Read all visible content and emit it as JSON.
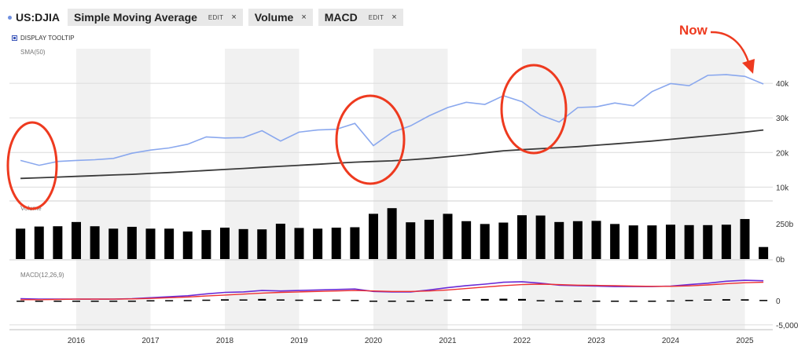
{
  "header": {
    "symbol": "US:DJIA",
    "tabs": [
      {
        "name": "Simple Moving Average",
        "edit": "EDIT",
        "close": "×"
      },
      {
        "name": "Volume",
        "close": "×"
      },
      {
        "name": "MACD",
        "edit": "EDIT",
        "close": "×"
      }
    ]
  },
  "tooltip_toggle": {
    "label": "DISPLAY TOOLTIP"
  },
  "annotation": {
    "now_label": "Now",
    "color": "#ee3a1f"
  },
  "colors": {
    "price": "#8aa8ee",
    "sma": "#3a3a3a",
    "volume": "#000000",
    "macd": "#6a2bd6",
    "signal": "#ee3030",
    "histogram": "#000000",
    "band": "#f1f1f1",
    "grid": "#dcdcdc"
  },
  "chart_data": [
    {
      "type": "line",
      "panel": "price",
      "label": "SMA(50)",
      "x": [
        2015.25,
        2015.5,
        2015.75,
        2016.0,
        2016.25,
        2016.5,
        2016.75,
        2017.0,
        2017.25,
        2017.5,
        2017.75,
        2018.0,
        2018.25,
        2018.5,
        2018.75,
        2019.0,
        2019.25,
        2019.5,
        2019.75,
        2020.0,
        2020.25,
        2020.5,
        2020.75,
        2021.0,
        2021.25,
        2021.5,
        2021.75,
        2022.0,
        2022.25,
        2022.5,
        2022.75,
        2023.0,
        2023.25,
        2023.5,
        2023.75,
        2024.0,
        2024.25,
        2024.5,
        2024.75,
        2025.0,
        2025.25
      ],
      "series": [
        {
          "name": "",
          "values": [
            17700,
            16300,
            17400,
            17700,
            17900,
            18300,
            19800,
            20700,
            21300,
            22400,
            24500,
            24200,
            24300,
            26300,
            23300,
            25900,
            26500,
            26700,
            28400,
            22000,
            25800,
            27700,
            30600,
            33000,
            34500,
            33900,
            36400,
            34700,
            30800,
            28800,
            33000,
            33200,
            34300,
            33500,
            37600,
            39900,
            39300,
            42300,
            42500,
            42000,
            39800
          ]
        },
        {
          "name": "",
          "values": [
            12500,
            12700,
            12900,
            13100,
            13300,
            13500,
            13700,
            13950,
            14200,
            14500,
            14800,
            15100,
            15400,
            15700,
            16000,
            16300,
            16600,
            16900,
            17200,
            17400,
            17600,
            17900,
            18300,
            18800,
            19300,
            19900,
            20500,
            20800,
            21100,
            21400,
            21700,
            22100,
            22500,
            22900,
            23300,
            23800,
            24300,
            24800,
            25300,
            25900,
            26500
          ]
        }
      ],
      "y_ticks": [
        "10k",
        "20k",
        "30k",
        "40k"
      ],
      "ylim": [
        6000,
        50000
      ]
    },
    {
      "type": "bar",
      "panel": "volume",
      "label": "Volume",
      "x": [
        2015.25,
        2015.5,
        2015.75,
        2016.0,
        2016.25,
        2016.5,
        2016.75,
        2017.0,
        2017.25,
        2017.5,
        2017.75,
        2018.0,
        2018.25,
        2018.5,
        2018.75,
        2019.0,
        2019.25,
        2019.5,
        2019.75,
        2020.0,
        2020.25,
        2020.5,
        2020.75,
        2021.0,
        2021.25,
        2021.5,
        2021.75,
        2022.0,
        2022.25,
        2022.5,
        2022.75,
        2023.0,
        2023.25,
        2023.5,
        2023.75,
        2024.0,
        2024.25,
        2024.5,
        2024.75,
        2025.0,
        2025.25
      ],
      "values": [
        215,
        230,
        232,
        262,
        232,
        215,
        228,
        215,
        215,
        195,
        205,
        222,
        212,
        210,
        250,
        220,
        215,
        222,
        225,
        320,
        360,
        260,
        278,
        320,
        268,
        248,
        258,
        310,
        308,
        262,
        268,
        270,
        248,
        238,
        238,
        243,
        240,
        240,
        243,
        283,
        85
      ],
      "y_ticks": [
        "0b",
        "250b"
      ],
      "ylim": [
        0,
        400
      ]
    },
    {
      "type": "line",
      "panel": "macd",
      "label": "MACD(12,26,9)",
      "x": [
        2015.25,
        2015.5,
        2015.75,
        2016.0,
        2016.25,
        2016.5,
        2016.75,
        2017.0,
        2017.25,
        2017.5,
        2017.75,
        2018.0,
        2018.25,
        2018.5,
        2018.75,
        2019.0,
        2019.25,
        2019.5,
        2019.75,
        2020.0,
        2020.25,
        2020.5,
        2020.75,
        2021.0,
        2021.25,
        2021.5,
        2021.75,
        2022.0,
        2022.25,
        2022.5,
        2022.75,
        2023.0,
        2023.25,
        2023.5,
        2023.75,
        2024.0,
        2024.25,
        2024.5,
        2024.75,
        2025.0,
        2025.25
      ],
      "series": [
        {
          "name": "",
          "values": [
            400,
            300,
            300,
            300,
            300,
            300,
            400,
            600,
            800,
            1000,
            1400,
            1700,
            1800,
            2100,
            2000,
            2100,
            2200,
            2300,
            2400,
            1900,
            1800,
            1800,
            2200,
            2700,
            3100,
            3400,
            3800,
            3900,
            3600,
            3200,
            3100,
            3000,
            2900,
            2900,
            2900,
            3000,
            3300,
            3600,
            4000,
            4200,
            4100
          ]
        },
        {
          "name": "",
          "values": [
            200,
            200,
            250,
            300,
            300,
            300,
            350,
            450,
            600,
            750,
            950,
            1150,
            1350,
            1550,
            1700,
            1800,
            1900,
            2000,
            2100,
            2000,
            1900,
            1900,
            2000,
            2200,
            2500,
            2800,
            3100,
            3300,
            3400,
            3300,
            3200,
            3150,
            3100,
            3000,
            2950,
            2950,
            3050,
            3250,
            3500,
            3700,
            3800
          ]
        }
      ],
      "histogram": [
        -150,
        -150,
        -100,
        0,
        0,
        -50,
        0,
        80,
        100,
        130,
        200,
        280,
        250,
        350,
        250,
        200,
        200,
        200,
        150,
        -150,
        -100,
        -50,
        150,
        200,
        300,
        350,
        400,
        350,
        100,
        -100,
        -150,
        -200,
        -200,
        -150,
        -50,
        50,
        150,
        250,
        300,
        280,
        150
      ],
      "y_ticks": [
        "0",
        "-5,000"
      ],
      "ylim": [
        -6000,
        6000
      ]
    }
  ],
  "x_axis": {
    "ticks": [
      "2016",
      "2017",
      "2018",
      "2019",
      "2020",
      "2021",
      "2022",
      "2023",
      "2024",
      "2025"
    ]
  }
}
